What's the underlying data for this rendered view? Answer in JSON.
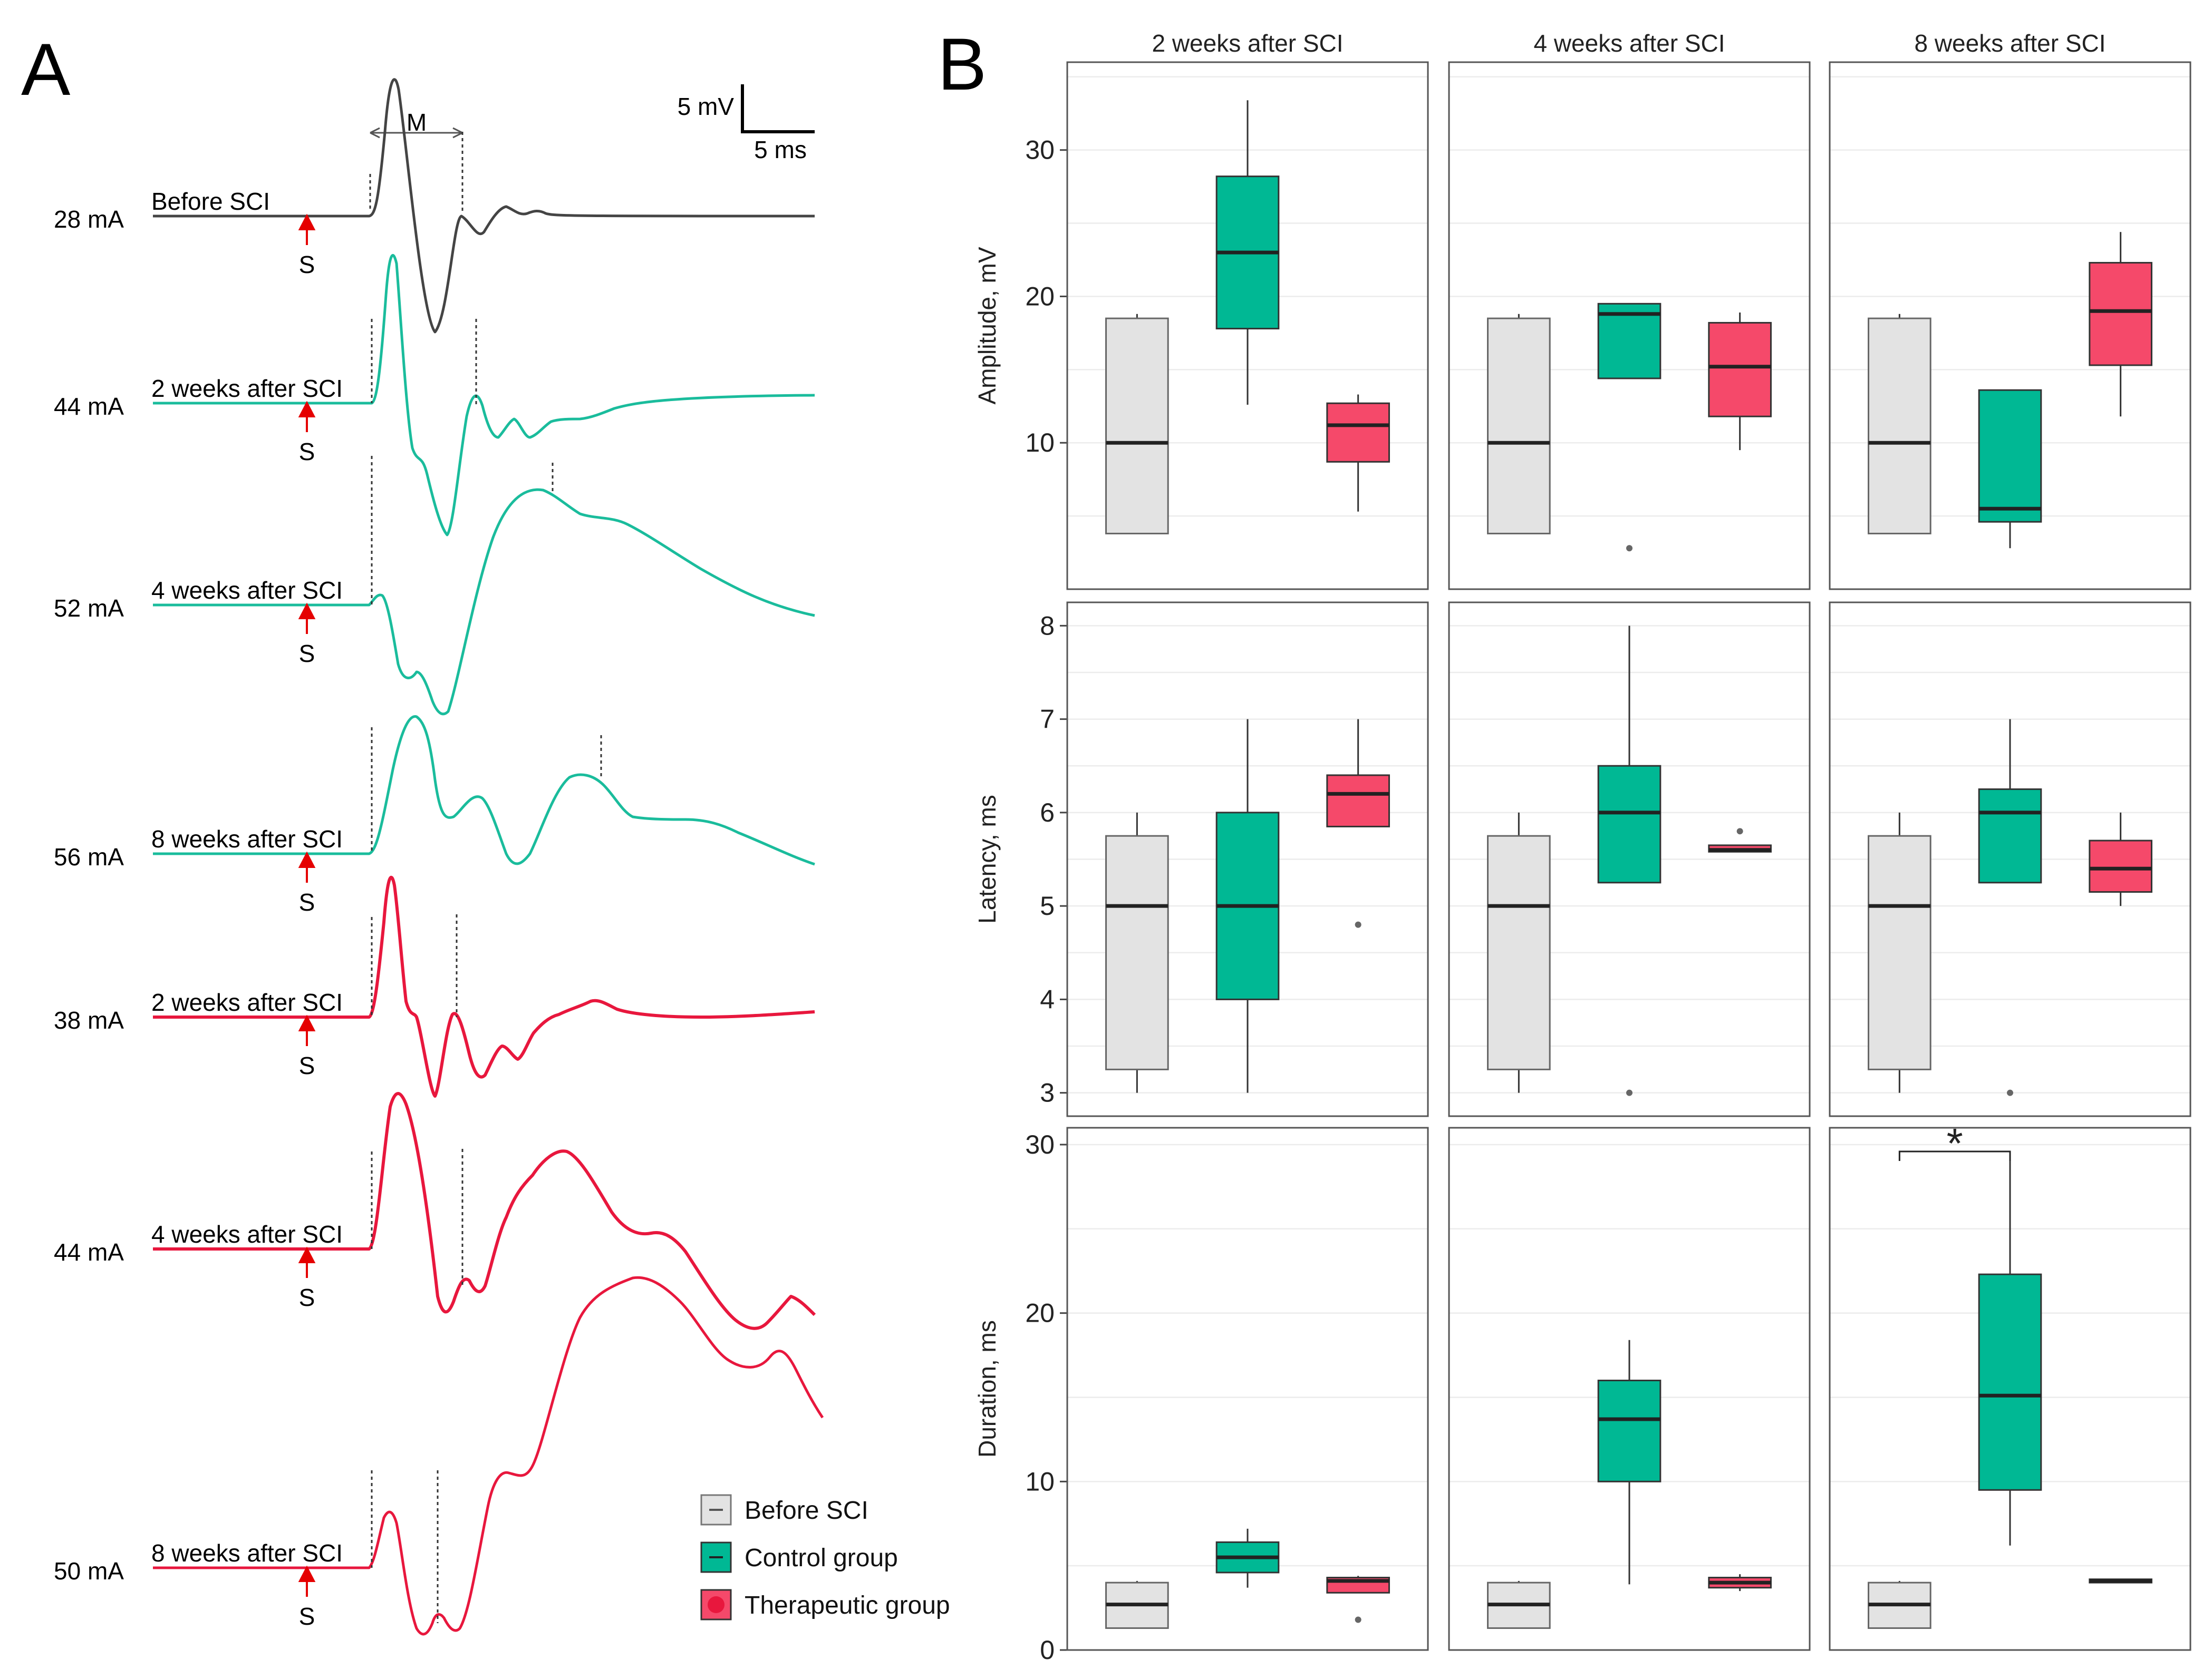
{
  "panel_a": {
    "letter": "A",
    "scale_bar": {
      "voltage": "5 mV",
      "time": "5 ms"
    },
    "m_label": "M",
    "stim_label": "S",
    "traces": [
      {
        "current": "28 mA",
        "label": "Before SCI",
        "group": "before"
      },
      {
        "current": "44 mA",
        "label": "2 weeks after SCI",
        "group": "control"
      },
      {
        "current": "52 mA",
        "label": "4 weeks after SCI",
        "group": "control"
      },
      {
        "current": "56 mA",
        "label": "8 weeks after SCI",
        "group": "control"
      },
      {
        "current": "38 mA",
        "label": "2 weeks after SCI",
        "group": "therapeutic"
      },
      {
        "current": "44 mA",
        "label": "4 weeks after SCI",
        "group": "therapeutic"
      },
      {
        "current": "50 mA",
        "label": "8 weeks after SCI",
        "group": "therapeutic"
      }
    ]
  },
  "panel_b": {
    "letter": "B"
  },
  "colors": {
    "before": "#e3e3e3",
    "control": "#00b894",
    "therapeutic": "#f5496a",
    "trace_before": "#444444",
    "trace_control": "#1abc9c",
    "trace_therapeutic": "#e8173d"
  },
  "chart_data": {
    "type": "box",
    "facets": [
      "2 weeks after SCI",
      "4 weeks after SCI",
      "8 weeks after SCI"
    ],
    "groups": [
      "Before SCI",
      "Control group",
      "Therapeutic group"
    ],
    "legend_position": "bottom-left of panel B",
    "rows": [
      {
        "ylabel": "Amplitude, mV",
        "ylim": [
          0,
          36
        ],
        "yticks": [
          10,
          20,
          30
        ],
        "panels": [
          [
            {
              "group": "Before SCI",
              "wl": 3.8,
              "q1": 3.8,
              "med": 10,
              "q3": 18.5,
              "wh": 18.8,
              "out": []
            },
            {
              "group": "Control group",
              "wl": 12.6,
              "q1": 17.8,
              "med": 23,
              "q3": 28.2,
              "wh": 33.4,
              "out": []
            },
            {
              "group": "Therapeutic group",
              "wl": 5.3,
              "q1": 8.7,
              "med": 11.2,
              "q3": 12.7,
              "wh": 13.3,
              "out": []
            }
          ],
          [
            {
              "group": "Before SCI",
              "wl": 3.8,
              "q1": 3.8,
              "med": 10,
              "q3": 18.5,
              "wh": 18.8,
              "out": []
            },
            {
              "group": "Control group",
              "wl": 14.4,
              "q1": 14.4,
              "med": 18.8,
              "q3": 19.5,
              "wh": 19.5,
              "out": [
                2.8
              ]
            },
            {
              "group": "Therapeutic group",
              "wl": 9.5,
              "q1": 11.8,
              "med": 15.2,
              "q3": 18.2,
              "wh": 18.9,
              "out": []
            }
          ],
          [
            {
              "group": "Before SCI",
              "wl": 3.8,
              "q1": 3.8,
              "med": 10,
              "q3": 18.5,
              "wh": 18.8,
              "out": []
            },
            {
              "group": "Control group",
              "wl": 2.8,
              "q1": 4.6,
              "med": 5.5,
              "q3": 13.6,
              "wh": 13.6,
              "out": []
            },
            {
              "group": "Therapeutic group",
              "wl": 11.8,
              "q1": 15.3,
              "med": 19,
              "q3": 22.3,
              "wh": 24.4,
              "out": []
            }
          ]
        ]
      },
      {
        "ylabel": "Latency, ms",
        "ylim": [
          2.75,
          8.25
        ],
        "yticks": [
          3,
          4,
          5,
          6,
          7,
          8
        ],
        "panels": [
          [
            {
              "group": "Before SCI",
              "wl": 3,
              "q1": 3.25,
              "med": 5,
              "q3": 5.75,
              "wh": 6,
              "out": []
            },
            {
              "group": "Control group",
              "wl": 3,
              "q1": 4,
              "med": 5,
              "q3": 6,
              "wh": 7,
              "out": []
            },
            {
              "group": "Therapeutic group",
              "wl": 5.85,
              "q1": 5.85,
              "med": 6.2,
              "q3": 6.4,
              "wh": 7,
              "out": [
                4.8
              ]
            }
          ],
          [
            {
              "group": "Before SCI",
              "wl": 3,
              "q1": 3.25,
              "med": 5,
              "q3": 5.75,
              "wh": 6,
              "out": []
            },
            {
              "group": "Control group",
              "wl": 5.25,
              "q1": 5.25,
              "med": 6,
              "q3": 6.5,
              "wh": 8,
              "out": [
                3
              ]
            },
            {
              "group": "Therapeutic group",
              "wl": 5.58,
              "q1": 5.58,
              "med": 5.6,
              "q3": 5.65,
              "wh": 5.65,
              "out": [
                5.8
              ]
            }
          ],
          [
            {
              "group": "Before SCI",
              "wl": 3,
              "q1": 3.25,
              "med": 5,
              "q3": 5.75,
              "wh": 6,
              "out": []
            },
            {
              "group": "Control group",
              "wl": 5.25,
              "q1": 5.25,
              "med": 6,
              "q3": 6.25,
              "wh": 7,
              "out": [
                3
              ]
            },
            {
              "group": "Therapeutic group",
              "wl": 5,
              "q1": 5.15,
              "med": 5.4,
              "q3": 5.7,
              "wh": 6,
              "out": []
            }
          ]
        ]
      },
      {
        "ylabel": "Duration, ms",
        "ylim": [
          0,
          31
        ],
        "yticks": [
          0,
          10,
          20,
          30
        ],
        "panels": [
          [
            {
              "group": "Before SCI",
              "wl": 1.3,
              "q1": 1.3,
              "med": 2.7,
              "q3": 4,
              "wh": 4.1,
              "out": []
            },
            {
              "group": "Control group",
              "wl": 3.7,
              "q1": 4.6,
              "med": 5.5,
              "q3": 6.4,
              "wh": 7.2,
              "out": []
            },
            {
              "group": "Therapeutic group",
              "wl": 3.4,
              "q1": 3.4,
              "med": 4.1,
              "q3": 4.3,
              "wh": 4.4,
              "out": [
                1.8
              ]
            }
          ],
          [
            {
              "group": "Before SCI",
              "wl": 1.3,
              "q1": 1.3,
              "med": 2.7,
              "q3": 4,
              "wh": 4.1,
              "out": []
            },
            {
              "group": "Control group",
              "wl": 3.9,
              "q1": 10,
              "med": 13.7,
              "q3": 16,
              "wh": 18.4,
              "out": []
            },
            {
              "group": "Therapeutic group",
              "wl": 3.5,
              "q1": 3.7,
              "med": 4,
              "q3": 4.3,
              "wh": 4.5,
              "out": []
            }
          ],
          [
            {
              "group": "Before SCI",
              "wl": 1.3,
              "q1": 1.3,
              "med": 2.7,
              "q3": 4,
              "wh": 4.1,
              "out": []
            },
            {
              "group": "Control group",
              "wl": 6.2,
              "q1": 9.5,
              "med": 15.1,
              "q3": 22.3,
              "wh": 29.6,
              "out": []
            },
            {
              "group": "Therapeutic group",
              "wl": 4,
              "q1": 4,
              "med": 4.1,
              "q3": 4.2,
              "wh": 4.2,
              "out": []
            }
          ]
        ]
      }
    ],
    "annotations": [
      {
        "row": 2,
        "facet": 2,
        "from_group": "Before SCI",
        "to_group": "Control group",
        "text": "*"
      }
    ]
  }
}
